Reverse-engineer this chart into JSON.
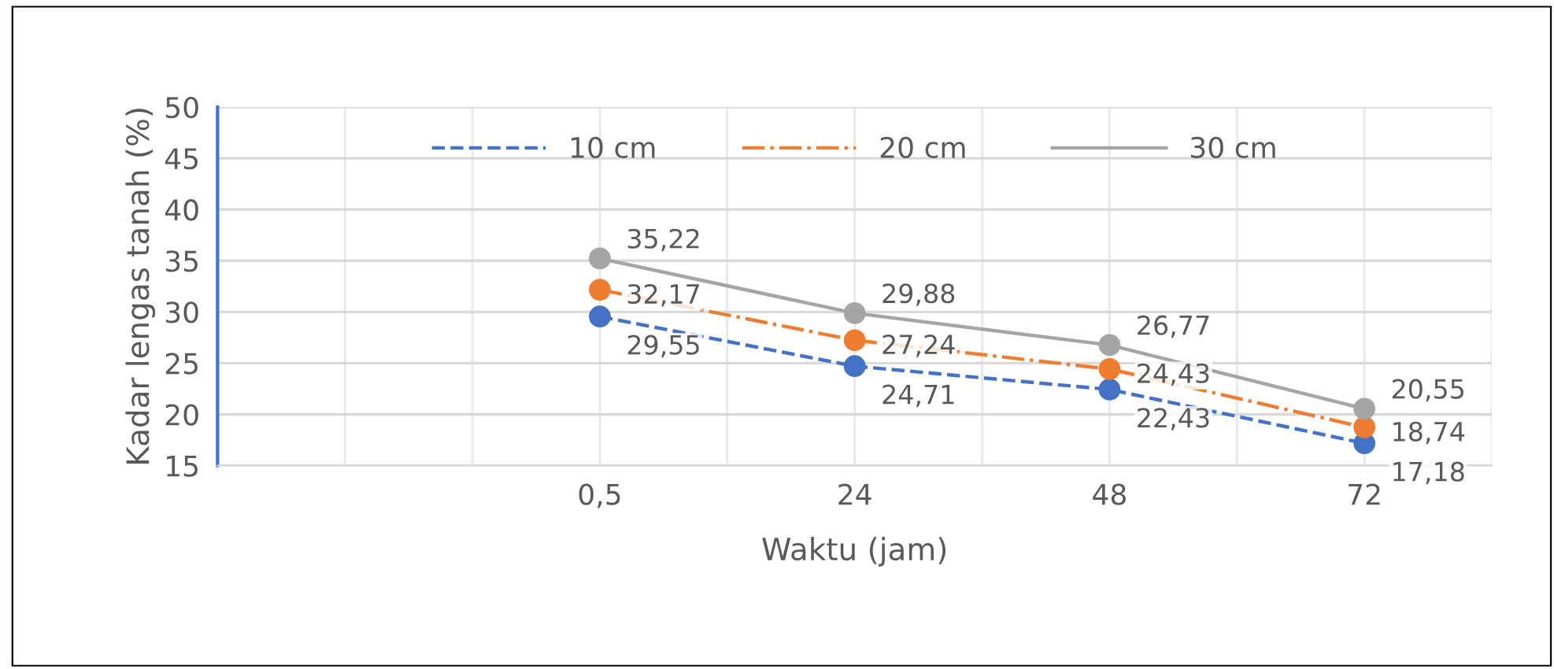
{
  "chart_data": {
    "type": "line",
    "xlabel": "Waktu (jam)",
    "ylabel": "Kadar lengas tanah (%)",
    "categories": [
      null,
      "0,5",
      "24",
      "48",
      "72"
    ],
    "ylim": [
      15,
      50
    ],
    "yticks": [
      15,
      20,
      25,
      30,
      35,
      40,
      45,
      50
    ],
    "grid": true,
    "legend": "top",
    "marker": "circle",
    "series": [
      {
        "name": "10 cm",
        "color": "#4472c4",
        "line_style": "dashed",
        "values": [
          null,
          29.55,
          24.71,
          22.43,
          17.18
        ],
        "value_labels": [
          null,
          "29,55",
          "24,71",
          "22,43",
          "17,18"
        ]
      },
      {
        "name": "20 cm",
        "color": "#ed7d31",
        "line_style": "dashdot",
        "values": [
          null,
          32.17,
          27.24,
          24.43,
          18.74
        ],
        "value_labels": [
          null,
          "32,17",
          "27,24",
          "24,43",
          "18,74"
        ]
      },
      {
        "name": "30 cm",
        "color": "#a5a5a5",
        "line_style": "solid",
        "values": [
          null,
          35.22,
          29.88,
          26.77,
          20.55
        ],
        "value_labels": [
          null,
          "35,22",
          "29,88",
          "26,77",
          "20,55"
        ]
      }
    ]
  }
}
